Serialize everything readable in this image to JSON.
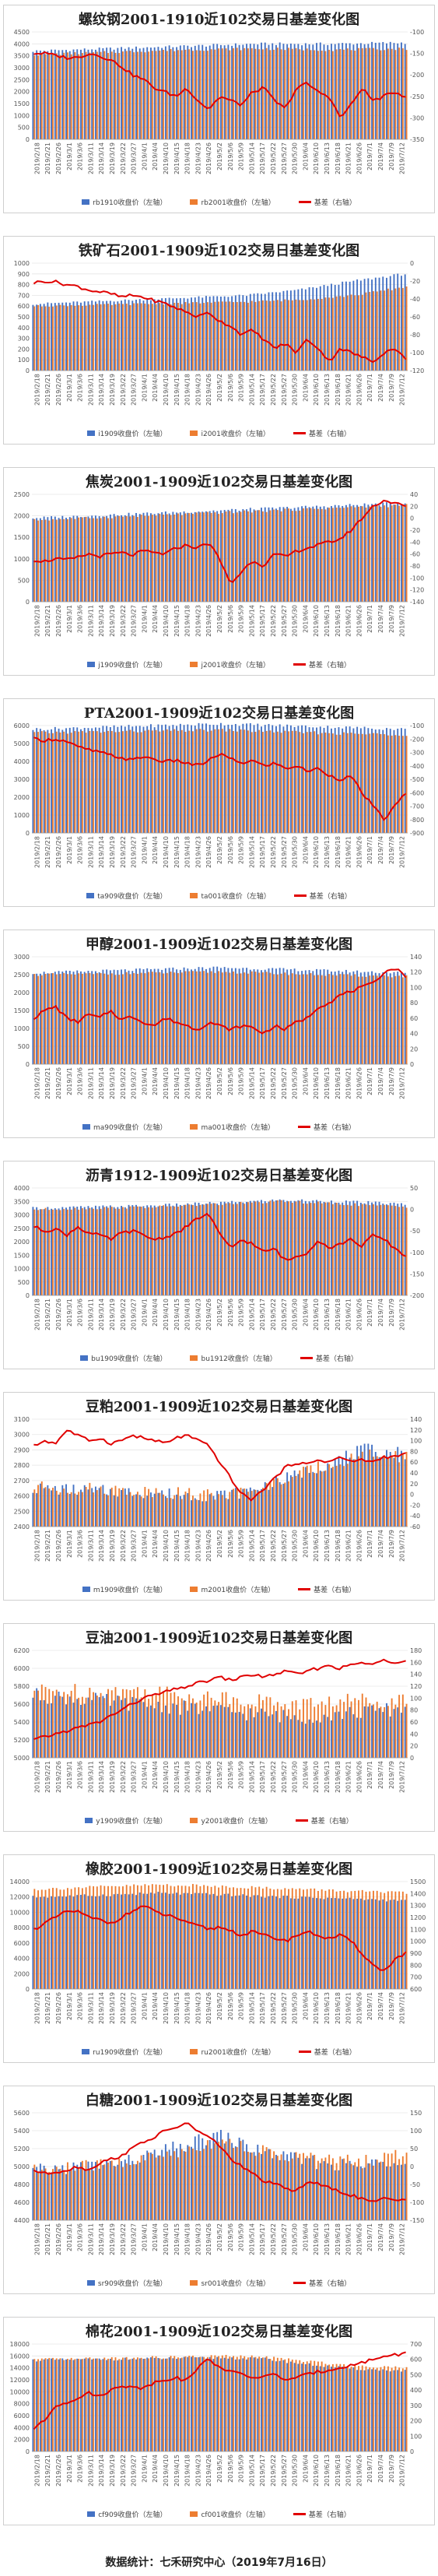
{
  "colors": {
    "near": "#4472C4",
    "far": "#ED7D31",
    "basis": "#E00000"
  },
  "footer": {
    "text": "数据统计：七禾研究中心（2019年7月16日）"
  },
  "x_ticks": [
    "2019/2/18",
    "2019/2/21",
    "2019/2/26",
    "2019/3/1",
    "2019/3/6",
    "2019/3/11",
    "2019/3/14",
    "2019/3/19",
    "2019/3/22",
    "2019/3/27",
    "2019/4/1",
    "2019/4/4",
    "2019/4/10",
    "2019/4/15",
    "2019/4/18",
    "2019/4/23",
    "2019/4/26",
    "2019/5/2",
    "2019/5/6",
    "2019/5/9",
    "2019/5/14",
    "2019/5/17",
    "2019/5/22",
    "2019/5/27",
    "2019/5/30",
    "2019/6/4",
    "2019/6/10",
    "2019/6/13",
    "2019/6/18",
    "2019/6/21",
    "2019/6/26",
    "2019/7/1",
    "2019/7/4",
    "2019/7/9",
    "2019/7/12"
  ],
  "chart_data": [
    {
      "type": "bar",
      "title": "螺纹钢2001-1910近102交易日基差变化图",
      "left_ylim": [
        0,
        4500
      ],
      "left_ticks": [
        "0",
        "500",
        "1000",
        "1500",
        "2000",
        "2500",
        "3000",
        "3500",
        "4000",
        "4500"
      ],
      "right_ylim": [
        -350,
        -100
      ],
      "right_ticks": [
        "-350",
        "-300",
        "-250",
        "-200",
        "-150",
        "-100"
      ],
      "series": [
        {
          "name": "rb1910收盘价（左轴）",
          "kf": [
            3700,
            3800,
            3900,
            4000,
            4000,
            4050
          ]
        },
        {
          "name": "rb2001收盘价（左轴）",
          "kf": [
            3550,
            3650,
            3750,
            3800,
            3750,
            3800
          ]
        },
        {
          "name": "基差（右轴）",
          "kf": [
            -150,
            -150,
            -155,
            -160,
            -160,
            -150,
            -155,
            -165,
            -180,
            -200,
            -210,
            -230,
            -240,
            -250,
            -230,
            -260,
            -280,
            -250,
            -260,
            -270,
            -240,
            -230,
            -260,
            -280,
            -230,
            -220,
            -240,
            -250,
            -300,
            -270,
            -230,
            -260,
            -250,
            -240,
            -250
          ]
        }
      ]
    },
    {
      "type": "bar",
      "title": "铁矿石2001-1909近102交易日基差变化图",
      "left_ylim": [
        0,
        1000
      ],
      "left_ticks": [
        "0",
        "100",
        "200",
        "300",
        "400",
        "500",
        "600",
        "700",
        "800",
        "900",
        "1000"
      ],
      "right_ylim": [
        -120,
        0
      ],
      "right_ticks": [
        "-120",
        "-100",
        "-80",
        "-60",
        "-40",
        "-20",
        "0"
      ],
      "series": [
        {
          "name": "i1909收盘价（左轴）",
          "kf": [
            620,
            640,
            660,
            680,
            700,
            750,
            830,
            900
          ]
        },
        {
          "name": "i2001收盘价（左轴）",
          "kf": [
            600,
            610,
            620,
            630,
            640,
            660,
            700,
            780
          ]
        },
        {
          "name": "基差（右轴）",
          "kf": [
            -22,
            -20,
            -21,
            -24,
            -26,
            -30,
            -32,
            -34,
            -38,
            -36,
            -38,
            -42,
            -45,
            -50,
            -55,
            -60,
            -55,
            -65,
            -70,
            -80,
            -75,
            -85,
            -95,
            -90,
            -100,
            -85,
            -95,
            -110,
            -95,
            -100,
            -105,
            -110,
            -100,
            -95,
            -108
          ]
        }
      ]
    },
    {
      "type": "bar",
      "title": "焦炭2001-1909近102交易日基差变化图",
      "left_ylim": [
        0,
        2500
      ],
      "left_ticks": [
        "0",
        "500",
        "1000",
        "1500",
        "2000",
        "2500"
      ],
      "right_ylim": [
        -140,
        40
      ],
      "right_ticks": [
        "-140",
        "-120",
        "-100",
        "-80",
        "-60",
        "-40",
        "-20",
        "0",
        "20",
        "40"
      ],
      "series": [
        {
          "name": "j1909收盘价（左轴）",
          "kf": [
            1950,
            2000,
            2050,
            2100,
            2150,
            2200,
            2250,
            2300
          ]
        },
        {
          "name": "j2001收盘价（左轴）",
          "kf": [
            1900,
            1950,
            2000,
            2050,
            2100,
            2150,
            2200,
            2250
          ]
        },
        {
          "name": "基差（右轴）",
          "kf": [
            -70,
            -72,
            -68,
            -70,
            -66,
            -60,
            -64,
            -60,
            -58,
            -62,
            -55,
            -58,
            -60,
            -50,
            -45,
            -50,
            -40,
            -70,
            -110,
            -90,
            -70,
            -80,
            -60,
            -65,
            -55,
            -50,
            -45,
            -40,
            -35,
            -20,
            0,
            20,
            30,
            25,
            20
          ]
        }
      ]
    },
    {
      "type": "bar",
      "title": "PTA2001-1909近102交易日基差变化图",
      "left_ylim": [
        0,
        6000
      ],
      "left_ticks": [
        "0",
        "1000",
        "2000",
        "3000",
        "4000",
        "5000",
        "6000"
      ],
      "right_ylim": [
        -900,
        -100
      ],
      "right_ticks": [
        "-900",
        "-800",
        "-700",
        "-600",
        "-500",
        "-400",
        "-300",
        "-200",
        "-100"
      ],
      "series": [
        {
          "name": "ta909收盘价（左轴）",
          "kf": [
            5800,
            5900,
            6000,
            6100,
            6000,
            5900,
            5800
          ]
        },
        {
          "name": "ta001收盘价（左轴）",
          "kf": [
            5600,
            5650,
            5700,
            5750,
            5650,
            5550,
            5500
          ]
        },
        {
          "name": "基差（右轴）",
          "kf": [
            -200,
            -210,
            -200,
            -220,
            -260,
            -280,
            -300,
            -320,
            -340,
            -360,
            -330,
            -350,
            -370,
            -360,
            -380,
            -400,
            -360,
            -310,
            -350,
            -380,
            -360,
            -400,
            -380,
            -420,
            -400,
            -440,
            -420,
            -470,
            -500,
            -480,
            -600,
            -700,
            -800,
            -700,
            -600
          ]
        }
      ]
    },
    {
      "type": "bar",
      "title": "甲醇2001-1909近102交易日基差变化图",
      "left_ylim": [
        0,
        3000
      ],
      "left_ticks": [
        "0",
        "500",
        "1000",
        "1500",
        "2000",
        "2500",
        "3000"
      ],
      "right_ylim": [
        0,
        140
      ],
      "right_ticks": [
        "0",
        "20",
        "40",
        "60",
        "80",
        "100",
        "120",
        "140"
      ],
      "series": [
        {
          "name": "ma909收盘价（左轴）",
          "kf": [
            2550,
            2600,
            2650,
            2700,
            2650,
            2600,
            2550
          ]
        },
        {
          "name": "ma001收盘价（左轴）",
          "kf": [
            2500,
            2520,
            2550,
            2580,
            2530,
            2480,
            2450
          ]
        },
        {
          "name": "基差（右轴）",
          "kf": [
            60,
            70,
            75,
            60,
            55,
            65,
            60,
            70,
            58,
            62,
            55,
            50,
            60,
            55,
            50,
            45,
            55,
            50,
            45,
            50,
            48,
            40,
            50,
            45,
            55,
            60,
            75,
            80,
            90,
            95,
            100,
            105,
            120,
            125,
            115
          ]
        }
      ]
    },
    {
      "type": "bar",
      "title": "沥青1912-1909近102交易日基差变化图",
      "left_ylim": [
        0,
        4000
      ],
      "left_ticks": [
        "0",
        "500",
        "1000",
        "1500",
        "2000",
        "2500",
        "3000",
        "3500",
        "4000"
      ],
      "right_ylim": [
        -200,
        50
      ],
      "right_ticks": [
        "-200",
        "-150",
        "-100",
        "-50",
        "0",
        "50"
      ],
      "series": [
        {
          "name": "bu1909收盘价（左轴）",
          "kf": [
            3250,
            3300,
            3350,
            3450,
            3550,
            3500,
            3400
          ]
        },
        {
          "name": "bu1912收盘价（左轴）",
          "kf": [
            3200,
            3250,
            3300,
            3400,
            3500,
            3400,
            3300
          ]
        },
        {
          "name": "基差（右轴）",
          "kf": [
            -40,
            -50,
            -45,
            -60,
            -40,
            -55,
            -60,
            -70,
            -55,
            -50,
            -60,
            -70,
            -65,
            -55,
            -40,
            -20,
            -10,
            -60,
            -90,
            -70,
            -80,
            -100,
            -90,
            -120,
            -110,
            -100,
            -70,
            -90,
            -80,
            -70,
            -85,
            -60,
            -70,
            -90,
            -110
          ]
        }
      ]
    },
    {
      "type": "bar",
      "title": "豆粕2001-1909近102交易日基差变化图",
      "left_ylim": [
        2400,
        3100
      ],
      "left_ticks": [
        "2400",
        "2500",
        "2600",
        "2700",
        "2800",
        "2900",
        "3000",
        "3100"
      ],
      "right_ylim": [
        -60,
        140
      ],
      "right_ticks": [
        "-60",
        "-40",
        "-20",
        "0",
        "20",
        "40",
        "60",
        "80",
        "100",
        "120",
        "140"
      ],
      "series": [
        {
          "name": "m1909收盘价（左轴）",
          "kf": [
            2650,
            2640,
            2630,
            2620,
            2600,
            2620,
            2700,
            2800,
            2900,
            2880
          ]
        },
        {
          "name": "m2001收盘价（左轴）",
          "kf": [
            2660,
            2650,
            2640,
            2630,
            2610,
            2620,
            2700,
            2800,
            2870,
            2860
          ]
        },
        {
          "name": "基差（右轴）",
          "kf": [
            90,
            100,
            95,
            120,
            110,
            100,
            105,
            95,
            100,
            110,
            105,
            100,
            95,
            105,
            110,
            100,
            90,
            60,
            30,
            0,
            -10,
            10,
            30,
            50,
            60,
            55,
            65,
            60,
            70,
            60,
            65,
            60,
            70,
            70,
            75
          ]
        }
      ]
    },
    {
      "type": "bar",
      "title": "豆油2001-1909近102交易日基差变化图",
      "left_ylim": [
        5000,
        6200
      ],
      "left_ticks": [
        "5000",
        "5200",
        "5400",
        "5600",
        "5800",
        "6000",
        "6200"
      ],
      "right_ylim": [
        0,
        180
      ],
      "right_ticks": [
        "0",
        "20",
        "40",
        "60",
        "80",
        "100",
        "120",
        "140",
        "160",
        "180"
      ],
      "series": [
        {
          "name": "y1909收盘价（左轴）",
          "kf": [
            5700,
            5650,
            5600,
            5550,
            5500,
            5450,
            5500,
            5550
          ]
        },
        {
          "name": "y2001收盘价（左轴）",
          "kf": [
            5750,
            5750,
            5750,
            5700,
            5650,
            5600,
            5650,
            5650
          ]
        },
        {
          "name": "基差（右轴）",
          "kf": [
            30,
            35,
            40,
            45,
            50,
            55,
            60,
            70,
            80,
            90,
            100,
            105,
            110,
            115,
            120,
            125,
            130,
            135,
            130,
            135,
            140,
            135,
            140,
            145,
            140,
            145,
            150,
            155,
            150,
            155,
            160,
            155,
            165,
            160,
            165
          ]
        }
      ]
    },
    {
      "type": "bar",
      "title": "橡胶2001-1909近102交易日基差变化图",
      "left_ylim": [
        0,
        14000
      ],
      "left_ticks": [
        "0",
        "2000",
        "4000",
        "6000",
        "8000",
        "10000",
        "12000",
        "14000"
      ],
      "right_ylim": [
        600,
        1500
      ],
      "right_ticks": [
        "600",
        "700",
        "800",
        "900",
        "1000",
        "1100",
        "1200",
        "1300",
        "1400",
        "1500"
      ],
      "series": [
        {
          "name": "ru1909收盘价（左轴）",
          "kf": [
            12000,
            12200,
            12500,
            12300,
            12000,
            11800,
            11500
          ]
        },
        {
          "name": "ru2001收盘价（左轴）",
          "kf": [
            13000,
            13300,
            13600,
            13400,
            13100,
            12800,
            12500
          ]
        },
        {
          "name": "基差（右轴）",
          "kf": [
            1100,
            1150,
            1200,
            1250,
            1250,
            1200,
            1180,
            1150,
            1200,
            1250,
            1300,
            1250,
            1220,
            1200,
            1150,
            1130,
            1100,
            1120,
            1090,
            1050,
            1080,
            1050,
            1030,
            1000,
            1050,
            1080,
            1050,
            1020,
            1050,
            1000,
            900,
            800,
            750,
            850,
            900
          ]
        }
      ]
    },
    {
      "type": "bar",
      "title": "白糖2001-1909近102交易日基差变化图",
      "left_ylim": [
        4400,
        5600
      ],
      "left_ticks": [
        "4400",
        "4600",
        "4800",
        "5000",
        "5200",
        "5400",
        "5600"
      ],
      "right_ylim": [
        -150,
        150
      ],
      "right_ticks": [
        "-150",
        "-100",
        "-50",
        "0",
        "50",
        "100",
        "150"
      ],
      "series": [
        {
          "name": "sr909收盘价（左轴）",
          "kf": [
            4950,
            5000,
            5050,
            5200,
            5350,
            5150,
            5050,
            5000,
            5100
          ]
        },
        {
          "name": "sr001收盘价（左轴）",
          "kf": [
            4950,
            5000,
            5050,
            5150,
            5300,
            5150,
            5100,
            5050,
            5150
          ]
        },
        {
          "name": "基差（右轴）",
          "kf": [
            -10,
            -20,
            -15,
            -10,
            0,
            -10,
            10,
            20,
            30,
            50,
            70,
            80,
            100,
            110,
            120,
            100,
            80,
            60,
            20,
            0,
            -20,
            -40,
            -50,
            -60,
            -70,
            -40,
            -50,
            -60,
            -70,
            -80,
            -90,
            -100,
            -90,
            -95,
            -90
          ]
        }
      ]
    },
    {
      "type": "bar",
      "title": "棉花2001-1909近102交易日基差变化图",
      "left_ylim": [
        0,
        18000
      ],
      "left_ticks": [
        "0",
        "2000",
        "4000",
        "6000",
        "8000",
        "10000",
        "12000",
        "14000",
        "16000",
        "18000"
      ],
      "right_ylim": [
        0,
        700
      ],
      "right_ticks": [
        "0",
        "100",
        "200",
        "300",
        "400",
        "500",
        "600",
        "700"
      ],
      "series": [
        {
          "name": "cf909收盘价（左轴）",
          "kf": [
            15300,
            15400,
            15500,
            15600,
            15700,
            15500,
            14500,
            13800,
            13500
          ]
        },
        {
          "name": "cf001收盘价（左轴）",
          "kf": [
            15400,
            15500,
            15700,
            15800,
            16000,
            15800,
            15000,
            14300,
            14100
          ]
        },
        {
          "name": "基差（右轴）",
          "kf": [
            150,
            200,
            300,
            320,
            350,
            380,
            360,
            400,
            420,
            430,
            410,
            450,
            470,
            480,
            460,
            550,
            600,
            550,
            520,
            500,
            480,
            490,
            500,
            470,
            480,
            500,
            520,
            530,
            550,
            560,
            580,
            600,
            620,
            630,
            640
          ]
        }
      ]
    }
  ]
}
